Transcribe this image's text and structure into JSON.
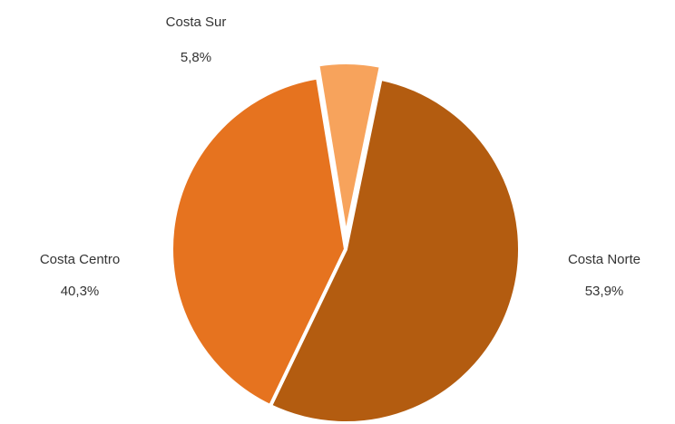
{
  "chart_data": {
    "type": "pie",
    "title": "",
    "slices": [
      {
        "name": "Costa Norte",
        "value": 53.9,
        "value_label": "53,9%",
        "color": "#b35c10",
        "exploded": false
      },
      {
        "name": "Costa Centro",
        "value": 40.3,
        "value_label": "40,3%",
        "color": "#e6731f",
        "exploded": false
      },
      {
        "name": "Costa Sur",
        "value": 5.8,
        "value_label": "5,8%",
        "color": "#f7a35c",
        "exploded": true
      }
    ],
    "legend": "none"
  }
}
